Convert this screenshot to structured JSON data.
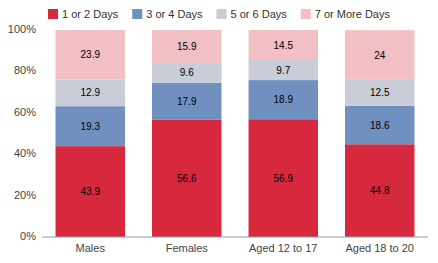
{
  "chart_data": {
    "type": "bar",
    "stacked": true,
    "data_labels": true,
    "legend": "top",
    "grid": false,
    "categories": [
      "Males",
      "Females",
      "Aged 12 to 17",
      "Aged 18 to 20"
    ],
    "series": [
      {
        "name": "1 or 2 Days",
        "color": "#d7293e",
        "values": [
          43.9,
          56.6,
          56.9,
          44.8
        ]
      },
      {
        "name": "3 or 4 Days",
        "color": "#7090c0",
        "values": [
          19.3,
          17.9,
          18.9,
          18.6
        ]
      },
      {
        "name": "5 or 6 Days",
        "color": "#c8cdd8",
        "values": [
          12.9,
          9.6,
          9.7,
          12.5
        ]
      },
      {
        "name": "7 or More Days",
        "color": "#f2bfc5",
        "values": [
          23.9,
          15.9,
          14.5,
          24.0
        ]
      }
    ],
    "ylim": [
      0,
      100
    ],
    "yticks": [
      {
        "value": 0,
        "label": "0%"
      },
      {
        "value": 20,
        "label": "20%"
      },
      {
        "value": 40,
        "label": "40%"
      },
      {
        "value": 60,
        "label": "60%"
      },
      {
        "value": 80,
        "label": "80%"
      },
      {
        "value": 100,
        "label": "100%"
      }
    ]
  }
}
